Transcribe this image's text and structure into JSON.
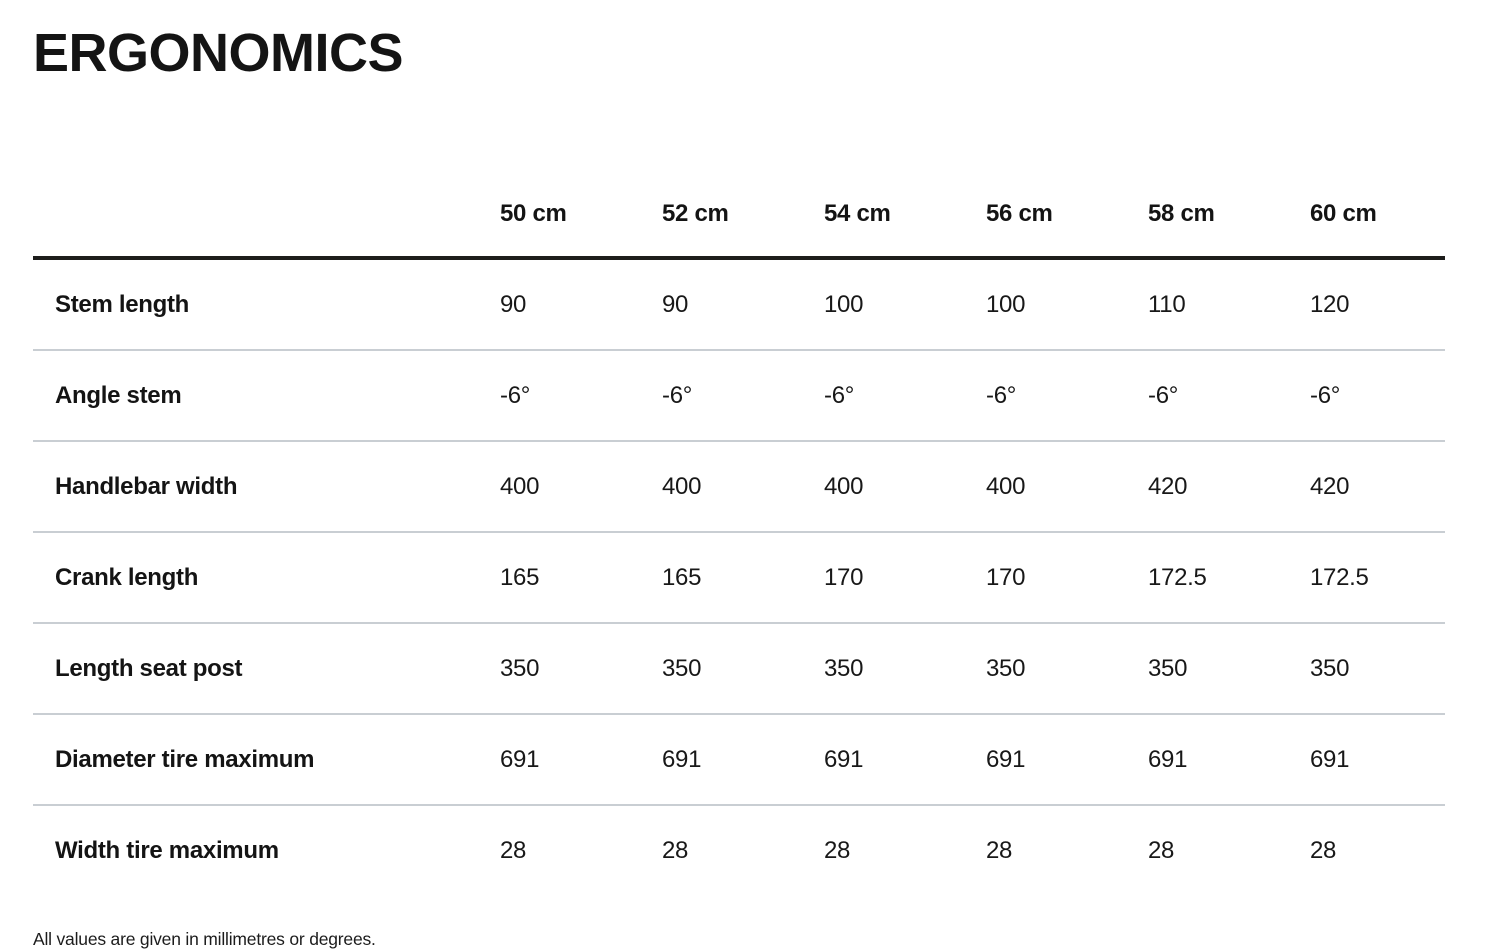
{
  "page": {
    "title": "ERGONOMICS",
    "footnote": "All values are given in millimetres or degrees."
  },
  "table": {
    "columns": [
      "50 cm",
      "52 cm",
      "54 cm",
      "56 cm",
      "58 cm",
      "60 cm"
    ],
    "rows": [
      {
        "label": "Stem length",
        "values": [
          "90",
          "90",
          "100",
          "100",
          "110",
          "120"
        ]
      },
      {
        "label": "Angle stem",
        "values": [
          "-6°",
          "-6°",
          "-6°",
          "-6°",
          "-6°",
          "-6°"
        ]
      },
      {
        "label": "Handlebar width",
        "values": [
          "400",
          "400",
          "400",
          "400",
          "420",
          "420"
        ]
      },
      {
        "label": "Crank length",
        "values": [
          "165",
          "165",
          "170",
          "170",
          "172.5",
          "172.5"
        ]
      },
      {
        "label": "Length seat post",
        "values": [
          "350",
          "350",
          "350",
          "350",
          "350",
          "350"
        ]
      },
      {
        "label": "Diameter tire maximum",
        "values": [
          "691",
          "691",
          "691",
          "691",
          "691",
          "691"
        ]
      },
      {
        "label": "Width tire maximum",
        "values": [
          "28",
          "28",
          "28",
          "28",
          "28",
          "28"
        ]
      }
    ]
  }
}
